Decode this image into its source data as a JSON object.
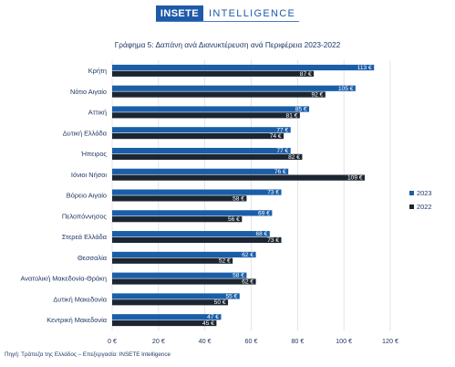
{
  "brand": {
    "name": "INSETE",
    "tagline": "INTELLIGENCE"
  },
  "source": "Πηγή: Τράπεζα της Ελλάδος – Επεξεργασία: INSETE Intelligence",
  "colors": {
    "s2023": "#1a5ea8",
    "s2022": "#1c2632",
    "grid": "#d9d9d9",
    "text": "#1f3864"
  },
  "chart_data": {
    "type": "bar",
    "orientation": "horizontal",
    "title": "Γράφημα 5: Δαπάνη ανά Διανυκτέρευση ανά Περιφέρεια 2023-2022",
    "categories": [
      "Κρήτη",
      "Νότιο Αιγαίο",
      "Αττική",
      "Δυτική Ελλάδα",
      "Ήπειρος",
      "Ιόνιοι Νήσοι",
      "Βόρειο Αιγαίο",
      "Πελοπόννησος",
      "Στερεά Ελλάδα",
      "Θεσσαλία",
      "Ανατολική Μακεδονία-Θράκη",
      "Δυτική Μακεδονία",
      "Κεντρική Μακεδονία"
    ],
    "series": [
      {
        "name": "2023",
        "values": [
          113,
          105,
          85,
          77,
          77,
          76,
          73,
          69,
          68,
          62,
          58,
          55,
          47
        ],
        "labels": [
          "113 €",
          "105 €",
          "85 €",
          "77 €",
          "77 €",
          "76 €",
          "73 €",
          "69 €",
          "68 €",
          "62 €",
          "58 €",
          "55 €",
          "47 €"
        ]
      },
      {
        "name": "2022",
        "values": [
          87,
          92,
          81,
          74,
          82,
          109,
          58,
          56,
          73,
          52,
          62,
          50,
          45
        ],
        "labels": [
          "87 €",
          "92 €",
          "81 €",
          "74 €",
          "82 €",
          "109 €",
          "58 €",
          "56 €",
          "73 €",
          "52 €",
          "62 €",
          "50 €",
          "45 €"
        ]
      }
    ],
    "xlim": [
      0,
      120
    ],
    "xticks": [
      0,
      20,
      40,
      60,
      80,
      100,
      120
    ],
    "xtick_labels": [
      "0 €",
      "20 €",
      "40 €",
      "60 €",
      "80 €",
      "100 €",
      "120 €"
    ],
    "grid": true,
    "legend": "right"
  }
}
